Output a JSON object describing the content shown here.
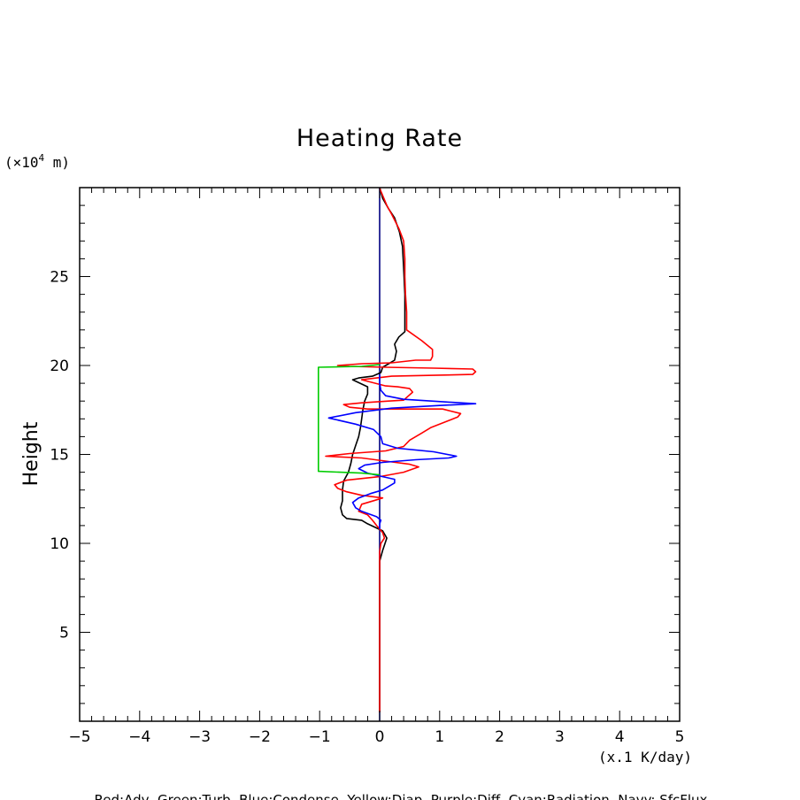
{
  "chart_data": {
    "type": "line",
    "title": "Heating Rate",
    "xlabel": "(x.1 K/day)",
    "ylabel": "Height",
    "y_unit": "(×10⁴ m)",
    "y_unit_prefix": "(×10",
    "y_unit_exp": "4",
    "y_unit_suffix": " m)",
    "xlim": [
      -5,
      5
    ],
    "ylim": [
      0,
      30
    ],
    "x_ticks": [
      -5,
      -4,
      -3,
      -2,
      -1,
      0,
      1,
      2,
      3,
      4,
      5
    ],
    "x_tick_labels": [
      "−5",
      "−4",
      "−3",
      "−2",
      "−1",
      "0",
      "1",
      "2",
      "3",
      "4",
      "5"
    ],
    "y_ticks": [
      5,
      10,
      15,
      20,
      25
    ],
    "y_tick_labels": [
      "5",
      "10",
      "15",
      "20",
      "25"
    ],
    "grid": false,
    "legend_text": "Red:Adv, Green:Turb, Blue:Condense, Yellow:Diap, Purple:Diff, Cyan:Radiation, Navy: SfcFlux",
    "series": [
      {
        "name": "Navy: SfcFlux",
        "color": "#000080",
        "points": [
          [
            0,
            0
          ],
          [
            0,
            30
          ]
        ]
      },
      {
        "name": "Black",
        "color": "#000000",
        "points": [
          [
            0.0,
            0.5
          ],
          [
            0.0,
            9.0
          ],
          [
            0.05,
            9.6
          ],
          [
            0.12,
            10.3
          ],
          [
            0.05,
            10.7
          ],
          [
            -0.2,
            11.1
          ],
          [
            -0.3,
            11.3
          ],
          [
            -0.55,
            11.4
          ],
          [
            -0.62,
            11.6
          ],
          [
            -0.65,
            12.0
          ],
          [
            -0.62,
            12.4
          ],
          [
            -0.62,
            13.0
          ],
          [
            -0.6,
            13.5
          ],
          [
            -0.52,
            14.0
          ],
          [
            -0.48,
            14.5
          ],
          [
            -0.45,
            15.0
          ],
          [
            -0.4,
            15.5
          ],
          [
            -0.35,
            16.0
          ],
          [
            -0.32,
            16.5
          ],
          [
            -0.3,
            17.0
          ],
          [
            -0.28,
            17.5
          ],
          [
            -0.25,
            18.0
          ],
          [
            -0.2,
            18.4
          ],
          [
            -0.2,
            18.8
          ],
          [
            -0.45,
            19.2
          ],
          [
            -0.35,
            19.3
          ],
          [
            -0.12,
            19.4
          ],
          [
            0.02,
            19.6
          ],
          [
            0.05,
            19.9
          ],
          [
            0.15,
            20.1
          ],
          [
            0.25,
            20.3
          ],
          [
            0.28,
            20.8
          ],
          [
            0.25,
            21.2
          ],
          [
            0.32,
            21.6
          ],
          [
            0.42,
            21.9
          ],
          [
            0.42,
            22.5
          ],
          [
            0.42,
            24.0
          ],
          [
            0.4,
            25.5
          ],
          [
            0.38,
            26.7
          ],
          [
            0.33,
            27.5
          ],
          [
            0.25,
            28.3
          ],
          [
            0.15,
            28.8
          ],
          [
            0.05,
            29.4
          ],
          [
            0.0,
            30.0
          ]
        ]
      },
      {
        "name": "Red:Adv",
        "color": "#ff0000",
        "points": [
          [
            0.0,
            0.5
          ],
          [
            0.0,
            9.5
          ],
          [
            0.02,
            10.0
          ],
          [
            0.08,
            10.3
          ],
          [
            0.05,
            10.6
          ],
          [
            -0.05,
            11.0
          ],
          [
            -0.12,
            11.3
          ],
          [
            -0.2,
            11.6
          ],
          [
            -0.35,
            11.8
          ],
          [
            -0.3,
            12.2
          ],
          [
            -0.1,
            12.4
          ],
          [
            0.05,
            12.55
          ],
          [
            -0.3,
            12.7
          ],
          [
            -0.55,
            12.9
          ],
          [
            -0.7,
            13.1
          ],
          [
            -0.75,
            13.3
          ],
          [
            -0.55,
            13.55
          ],
          [
            0.0,
            13.75
          ],
          [
            0.4,
            14.0
          ],
          [
            0.65,
            14.3
          ],
          [
            0.5,
            14.45
          ],
          [
            0.15,
            14.6
          ],
          [
            -0.3,
            14.8
          ],
          [
            -0.9,
            14.9
          ],
          [
            -0.5,
            15.05
          ],
          [
            0.1,
            15.2
          ],
          [
            0.4,
            15.45
          ],
          [
            0.5,
            15.8
          ],
          [
            0.7,
            16.2
          ],
          [
            0.85,
            16.5
          ],
          [
            1.15,
            16.9
          ],
          [
            1.3,
            17.1
          ],
          [
            1.35,
            17.3
          ],
          [
            1.05,
            17.55
          ],
          [
            0.5,
            17.55
          ],
          [
            -0.2,
            17.55
          ],
          [
            -0.5,
            17.65
          ],
          [
            -0.6,
            17.8
          ],
          [
            -0.3,
            17.9
          ],
          [
            0.15,
            18.0
          ],
          [
            0.4,
            18.05
          ],
          [
            0.55,
            18.5
          ],
          [
            0.5,
            18.7
          ],
          [
            0.3,
            18.8
          ],
          [
            0.1,
            18.85
          ],
          [
            -0.3,
            19.2
          ],
          [
            0.2,
            19.4
          ],
          [
            0.9,
            19.45
          ],
          [
            1.55,
            19.5
          ],
          [
            1.6,
            19.65
          ],
          [
            1.55,
            19.8
          ],
          [
            0.9,
            19.85
          ],
          [
            0.1,
            19.9
          ],
          [
            -0.5,
            19.95
          ],
          [
            -0.7,
            20.0
          ],
          [
            -0.3,
            20.1
          ],
          [
            0.2,
            20.15
          ],
          [
            0.6,
            20.3
          ],
          [
            0.85,
            20.3
          ],
          [
            0.88,
            20.5
          ],
          [
            0.88,
            20.9
          ],
          [
            0.7,
            21.4
          ],
          [
            0.45,
            22.0
          ],
          [
            0.45,
            23.0
          ],
          [
            0.43,
            24.0
          ],
          [
            0.42,
            25.0
          ],
          [
            0.42,
            26.0
          ],
          [
            0.4,
            27.0
          ],
          [
            0.32,
            27.7
          ],
          [
            0.2,
            28.5
          ],
          [
            0.12,
            29.0
          ],
          [
            0.02,
            29.8
          ],
          [
            0.0,
            30.0
          ]
        ]
      },
      {
        "name": "Blue:Condense",
        "color": "#0000ff",
        "points": [
          [
            0.0,
            10.8
          ],
          [
            0.0,
            11.1
          ],
          [
            0.02,
            11.3
          ],
          [
            -0.05,
            11.5
          ],
          [
            -0.3,
            11.8
          ],
          [
            -0.4,
            12.0
          ],
          [
            -0.45,
            12.3
          ],
          [
            -0.35,
            12.55
          ],
          [
            -0.15,
            12.8
          ],
          [
            0.05,
            13.0
          ],
          [
            0.15,
            13.2
          ],
          [
            0.25,
            13.4
          ],
          [
            0.25,
            13.6
          ],
          [
            0.05,
            13.75
          ],
          [
            -0.2,
            13.95
          ],
          [
            -0.35,
            14.2
          ],
          [
            -0.25,
            14.4
          ],
          [
            0.05,
            14.55
          ],
          [
            0.6,
            14.7
          ],
          [
            1.15,
            14.8
          ],
          [
            1.28,
            14.9
          ],
          [
            0.9,
            15.15
          ],
          [
            0.3,
            15.35
          ],
          [
            0.05,
            15.6
          ],
          [
            0.02,
            16.0
          ],
          [
            -0.1,
            16.4
          ],
          [
            -0.4,
            16.7
          ],
          [
            -0.85,
            17.05
          ],
          [
            -0.4,
            17.35
          ],
          [
            0.2,
            17.6
          ],
          [
            1.0,
            17.75
          ],
          [
            1.6,
            17.85
          ],
          [
            1.1,
            17.95
          ],
          [
            0.4,
            18.1
          ],
          [
            0.1,
            18.3
          ],
          [
            0.02,
            18.6
          ],
          [
            0.0,
            19.0
          ],
          [
            0.0,
            19.5
          ]
        ]
      },
      {
        "name": "Green:Turb",
        "color": "#00cc00",
        "points": [
          [
            0.0,
            13.85
          ],
          [
            -0.3,
            13.95
          ],
          [
            -1.02,
            14.05
          ],
          [
            -1.02,
            19.9
          ],
          [
            -0.3,
            19.95
          ],
          [
            0.0,
            20.05
          ]
        ]
      }
    ]
  }
}
